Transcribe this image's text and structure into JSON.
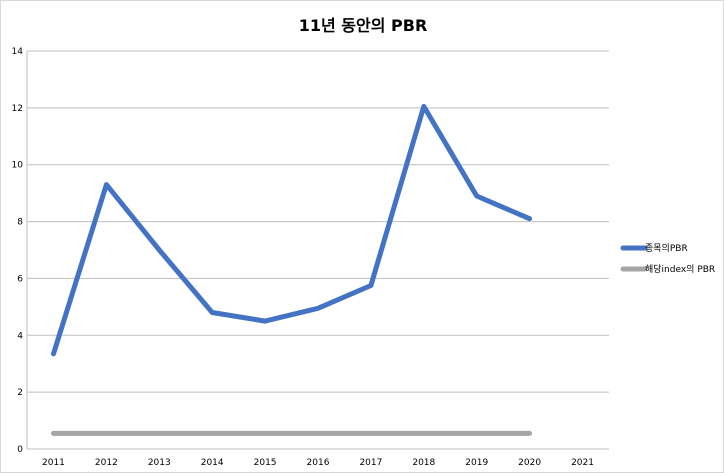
{
  "chart_data": {
    "type": "line",
    "title": "11년 동안의 PBR",
    "xlabel": "",
    "ylabel": "",
    "categories": [
      "2011",
      "2012",
      "2013",
      "2014",
      "2015",
      "2016",
      "2017",
      "2018",
      "2019",
      "2020",
      "2021"
    ],
    "ylim": [
      0,
      14
    ],
    "yticks": [
      0,
      2,
      4,
      6,
      8,
      10,
      12,
      14
    ],
    "grid": "horizontal",
    "legend_position": "right",
    "series": [
      {
        "name": "종목의PBR",
        "color": "#4472c4",
        "values": [
          3.35,
          9.3,
          7.0,
          4.8,
          4.5,
          4.95,
          5.75,
          12.05,
          8.9,
          8.1,
          null
        ]
      },
      {
        "name": "해당index의 PBR",
        "color": "#a5a5a5",
        "values": [
          0.55,
          0.55,
          0.55,
          0.55,
          0.55,
          0.55,
          0.55,
          0.55,
          0.55,
          0.55,
          null
        ]
      }
    ]
  }
}
